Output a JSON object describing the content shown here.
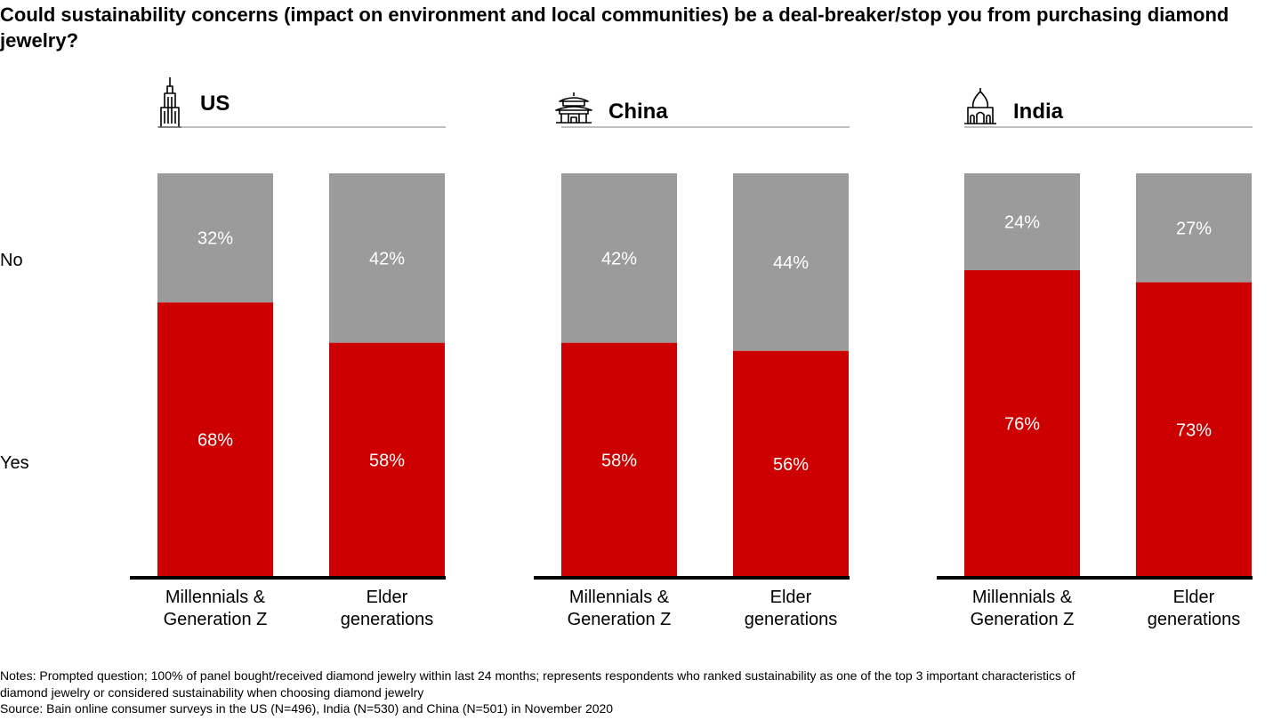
{
  "title": "Could sustainability concerns (impact on environment and local communities) be a deal-breaker/stop you from purchasing diamond jewelry?",
  "colors": {
    "yes": "#cc0000",
    "no": "#9b9b9b",
    "bar_text": "#ffffff",
    "axis": "#000000",
    "header_line": "#7f7f7f"
  },
  "chart_data": {
    "type": "bar",
    "stacked": true,
    "title": "Could sustainability concerns (impact on environment and local communities) be a deal-breaker/stop you from purchasing diamond jewelry?",
    "row_labels": [
      "No",
      "Yes"
    ],
    "panels": [
      {
        "name": "US",
        "icon": "skyscraper-icon",
        "categories": [
          "Millennials & Generation Z",
          "Elder generations"
        ],
        "series": [
          {
            "name": "Yes",
            "values": [
              68,
              58
            ],
            "labels": [
              "68%",
              "58%"
            ]
          },
          {
            "name": "No",
            "values": [
              32,
              42
            ],
            "labels": [
              "32%",
              "42%"
            ]
          }
        ]
      },
      {
        "name": "China",
        "icon": "pagoda-icon",
        "categories": [
          "Millennials & Generation Z",
          "Elder generations"
        ],
        "series": [
          {
            "name": "Yes",
            "values": [
              58,
              56
            ],
            "labels": [
              "58%",
              "56%"
            ]
          },
          {
            "name": "No",
            "values": [
              42,
              44
            ],
            "labels": [
              "42%",
              "44%"
            ]
          }
        ]
      },
      {
        "name": "India",
        "icon": "taj-mahal-icon",
        "categories": [
          "Millennials & Generation Z",
          "Elder generations"
        ],
        "series": [
          {
            "name": "Yes",
            "values": [
              76,
              73
            ],
            "labels": [
              "76%",
              "73%"
            ]
          },
          {
            "name": "No",
            "values": [
              24,
              27
            ],
            "labels": [
              "24%",
              "27%"
            ]
          }
        ]
      }
    ],
    "ylim": [
      0,
      100
    ]
  },
  "notes": {
    "line1": "Notes: Prompted question; 100% of panel bought/received diamond jewelry within last 24 months; represents respondents who ranked sustainability as one of the top 3 important characteristics of",
    "line2": "diamond jewelry or considered sustainability when choosing diamond jewelry",
    "source": "Source: Bain online consumer surveys in the US (N=496), India (N=530) and China (N=501) in November 2020"
  }
}
